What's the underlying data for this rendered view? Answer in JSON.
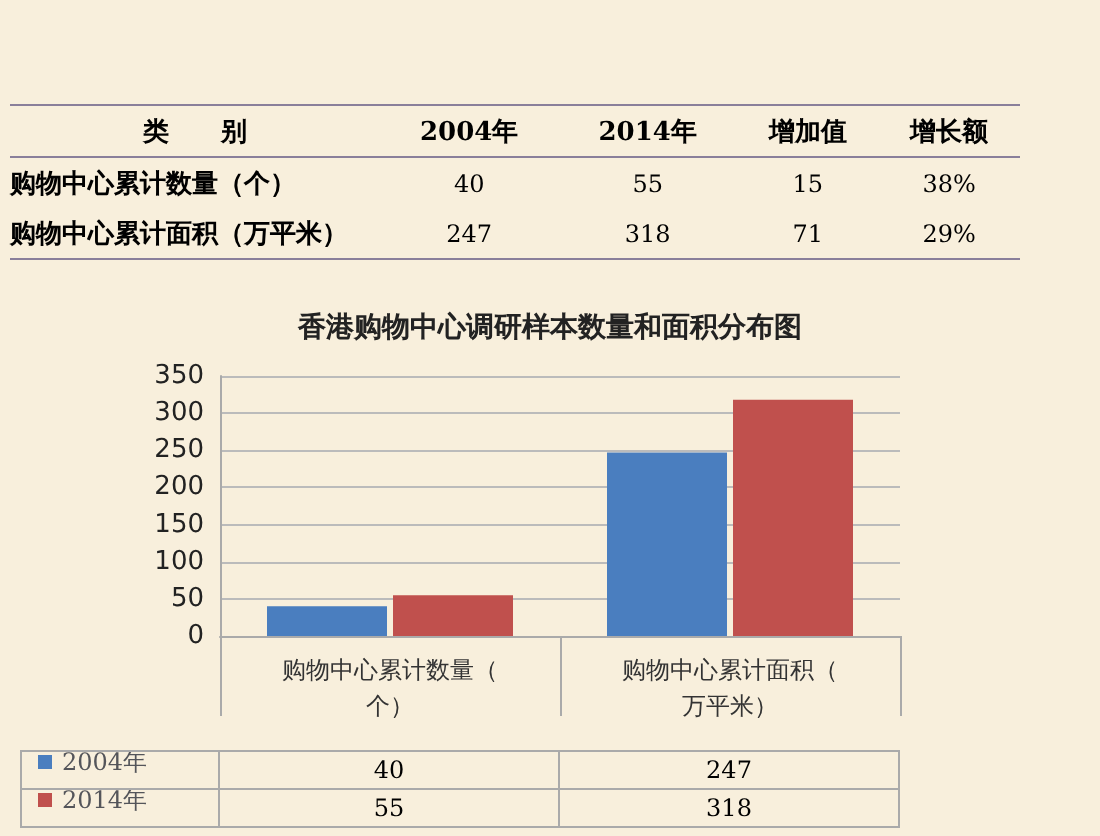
{
  "chart_data": [
    {
      "type": "other",
      "annotations": [
        "类　　别",
        "2004年",
        "2014年",
        "增加值",
        "增长额",
        "购物中心累计数量（个）",
        "40",
        "55",
        "15",
        "38%",
        "购物中心累计面积（万平米）",
        "247",
        "318",
        "71",
        "29%"
      ]
    },
    {
      "type": "bar",
      "title": "香港购物中心调研样本数量和面积分布图",
      "categories": [
        "购物中心累计数量（个）",
        "购物中心累计面积（万平米）"
      ],
      "series": [
        {
          "name": "2004年",
          "color": "#4a7ebf",
          "values": [
            40,
            247
          ]
        },
        {
          "name": "2014年",
          "color": "#c0504d",
          "values": [
            55,
            318
          ]
        }
      ],
      "ylim": [
        0,
        350
      ],
      "yticks": [
        0,
        50,
        100,
        150,
        200,
        250,
        300,
        350
      ],
      "grid": "y",
      "legend": "bottom left",
      "data_labels": true
    }
  ]
}
